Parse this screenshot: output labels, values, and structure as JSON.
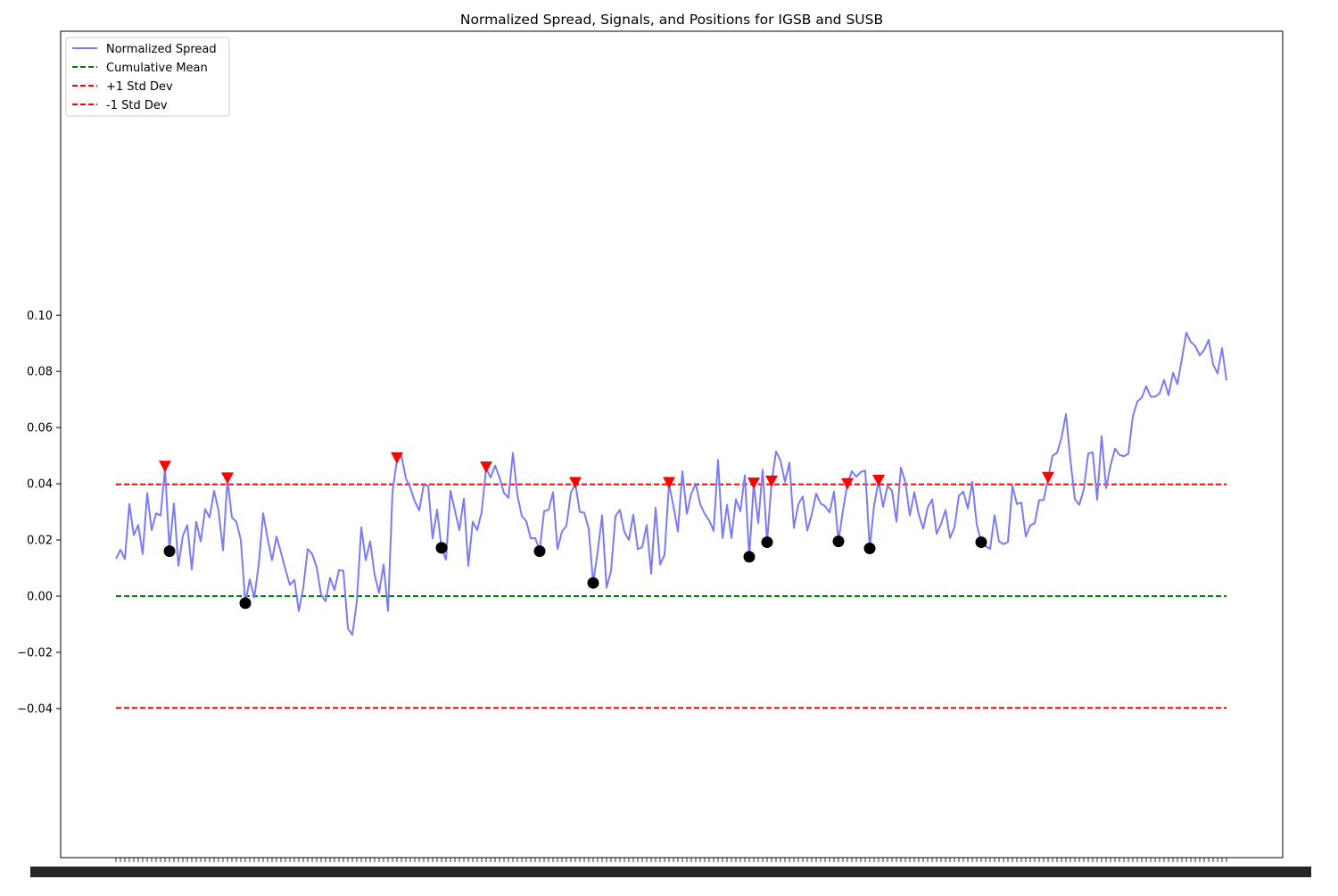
{
  "chart_data": {
    "type": "line",
    "title": "Normalized Spread, Signals, and Positions for IGSB and SUSB",
    "xlabel": "",
    "ylabel": "",
    "ylim": [
      -0.047,
      0.101
    ],
    "grid": false,
    "legend": "upper-left",
    "y_ticks": [
      "0.10",
      "0.08",
      "0.06",
      "0.04",
      "0.02",
      "0.00",
      "−0.02",
      "−0.04"
    ],
    "x_ticks_note": "x tick labels are overlapping dates and are unreadable",
    "series": [
      {
        "name": "Normalized Spread",
        "color": "#7b7bf5",
        "values": [
          0.0133,
          0.0165,
          0.0132,
          0.0328,
          0.0217,
          0.0253,
          0.015,
          0.0367,
          0.0235,
          0.0295,
          0.0287,
          0.0455,
          0.0165,
          0.033,
          0.0108,
          0.0215,
          0.0253,
          0.0095,
          0.0265,
          0.0195,
          0.031,
          0.028,
          0.0375,
          0.0305,
          0.0163,
          0.0415,
          0.028,
          0.0265,
          0.02,
          -0.0025,
          0.006,
          -0.0005,
          0.011,
          0.0295,
          0.0205,
          0.0128,
          0.0212,
          0.0155,
          0.0095,
          0.004,
          0.0058,
          -0.0053,
          0.003,
          0.0168,
          0.015,
          0.0103,
          0.0005,
          -0.0018,
          0.0065,
          0.0022,
          0.0093,
          0.009,
          -0.0115,
          -0.0138,
          -0.002,
          0.0245,
          0.0128,
          0.0195,
          0.0075,
          0.0012,
          0.0113,
          -0.0053,
          0.037,
          0.0485,
          0.05,
          0.042,
          0.0385,
          0.0337,
          0.0305,
          0.0395,
          0.0393,
          0.0205,
          0.0308,
          0.017,
          0.013,
          0.0375,
          0.0305,
          0.0235,
          0.0348,
          0.0108,
          0.0265,
          0.0235,
          0.03,
          0.0455,
          0.0422,
          0.0465,
          0.0422,
          0.0367,
          0.035,
          0.051,
          0.036,
          0.0285,
          0.0267,
          0.0205,
          0.0207,
          0.0163,
          0.0303,
          0.0307,
          0.037,
          0.0167,
          0.023,
          0.025,
          0.0368,
          0.04,
          0.03,
          0.0297,
          0.024,
          0.0047,
          0.0157,
          0.0288,
          0.003,
          0.009,
          0.0285,
          0.0307,
          0.0228,
          0.02,
          0.029,
          0.0167,
          0.0175,
          0.0253,
          0.008,
          0.0315,
          0.0113,
          0.0147,
          0.04,
          0.032,
          0.023,
          0.0445,
          0.0293,
          0.0365,
          0.04,
          0.0327,
          0.0293,
          0.027,
          0.0232,
          0.0485,
          0.0207,
          0.0325,
          0.0207,
          0.0345,
          0.0302,
          0.043,
          0.014,
          0.04,
          0.026,
          0.045,
          0.0192,
          0.0405,
          0.0515,
          0.0483,
          0.0407,
          0.0475,
          0.0243,
          0.0327,
          0.0355,
          0.0233,
          0.029,
          0.0365,
          0.033,
          0.032,
          0.0298,
          0.0372,
          0.0195,
          0.0305,
          0.04,
          0.0445,
          0.0425,
          0.0442,
          0.0447,
          0.017,
          0.0325,
          0.041,
          0.0318,
          0.0393,
          0.0375,
          0.0265,
          0.0457,
          0.0405,
          0.0287,
          0.037,
          0.029,
          0.024,
          0.0315,
          0.0345,
          0.0222,
          0.0257,
          0.0307,
          0.0207,
          0.0245,
          0.0357,
          0.0372,
          0.0312,
          0.0407,
          0.0255,
          0.0192,
          0.0178,
          0.0168,
          0.0288,
          0.0195,
          0.0185,
          0.0193,
          0.0393,
          0.0328,
          0.0333,
          0.0212,
          0.0252,
          0.026,
          0.0342,
          0.0342,
          0.042,
          0.05,
          0.051,
          0.0563,
          0.0648,
          0.0485,
          0.0345,
          0.0325,
          0.038,
          0.0508,
          0.0512,
          0.0343,
          0.057,
          0.0385,
          0.0465,
          0.0525,
          0.0503,
          0.0498,
          0.0507,
          0.064,
          0.0693,
          0.0707,
          0.0747,
          0.071,
          0.071,
          0.0722,
          0.077,
          0.0715,
          0.0795,
          0.0755,
          0.0845,
          0.0938,
          0.0905,
          0.089,
          0.0857,
          0.0877,
          0.0912,
          0.0825,
          0.0792,
          0.0883,
          0.0768
        ]
      },
      {
        "name": "Cumulative Mean",
        "color": "#008000",
        "dashed": true,
        "value": 0.0
      },
      {
        "name": "+1 Std Dev",
        "color": "#ff0000",
        "dashed": true,
        "value": 0.0398
      },
      {
        "name": "-1 Std Dev",
        "color": "#ff0000",
        "dashed": true,
        "value": -0.0398
      }
    ],
    "markers": {
      "sell_signals": {
        "shape": "triangle-down",
        "color": "#ff0000",
        "points": [
          [
            11,
            0.046
          ],
          [
            25,
            0.0418
          ],
          [
            63,
            0.049
          ],
          [
            83,
            0.0457
          ],
          [
            103,
            0.0402
          ],
          [
            124,
            0.0402
          ],
          [
            143,
            0.04
          ],
          [
            147,
            0.0407
          ],
          [
            164,
            0.0398
          ],
          [
            171,
            0.041
          ],
          [
            209,
            0.042
          ]
        ]
      },
      "positions": {
        "shape": "circle",
        "color": "#000000",
        "points": [
          [
            12,
            0.016
          ],
          [
            29,
            -0.0025
          ],
          [
            73,
            0.0172
          ],
          [
            95,
            0.016
          ],
          [
            107,
            0.0047
          ],
          [
            142,
            0.014
          ],
          [
            146,
            0.0192
          ],
          [
            162,
            0.0195
          ],
          [
            169,
            0.017
          ],
          [
            194,
            0.0192
          ]
        ]
      }
    }
  }
}
